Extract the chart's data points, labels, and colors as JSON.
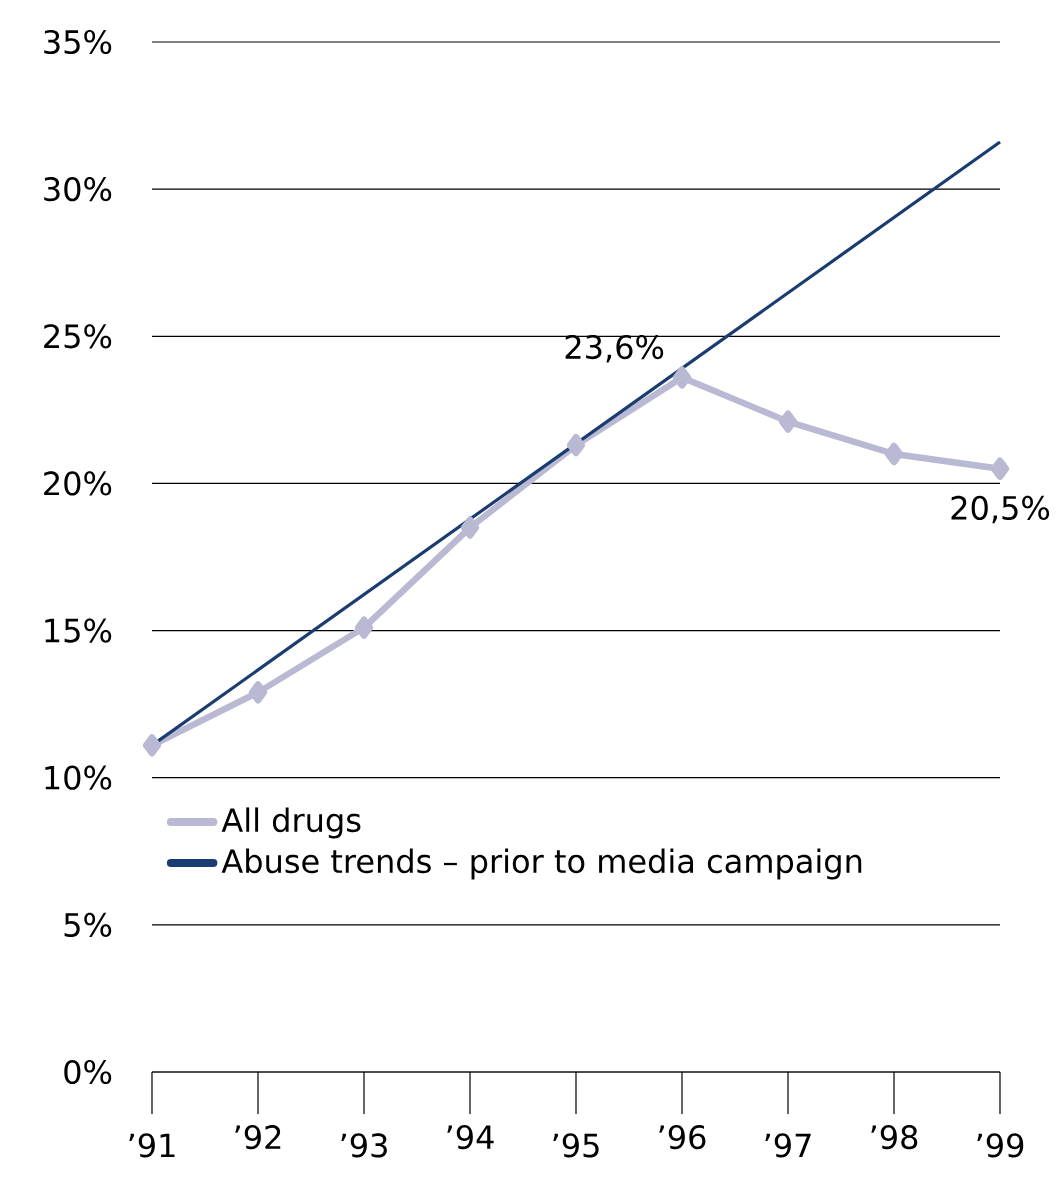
{
  "chart_data": {
    "type": "line",
    "x": [
      1991,
      1992,
      1993,
      1994,
      1995,
      1996,
      1997,
      1998,
      1999
    ],
    "xlim": [
      1991,
      1999
    ],
    "xticks": [
      {
        "value": 1991,
        "label": "’91"
      },
      {
        "value": 1992,
        "label": "’92"
      },
      {
        "value": 1993,
        "label": "’93"
      },
      {
        "value": 1994,
        "label": "’94"
      },
      {
        "value": 1995,
        "label": "’95"
      },
      {
        "value": 1996,
        "label": "’96"
      },
      {
        "value": 1997,
        "label": "’97"
      },
      {
        "value": 1998,
        "label": "’98"
      },
      {
        "value": 1999,
        "label": "’99"
      }
    ],
    "ylim": [
      0,
      35
    ],
    "yticks": [
      {
        "value": 0,
        "label": "0%"
      },
      {
        "value": 5,
        "label": "5%"
      },
      {
        "value": 10,
        "label": "10%"
      },
      {
        "value": 15,
        "label": "15%"
      },
      {
        "value": 20,
        "label": "20%"
      },
      {
        "value": 25,
        "label": "25%"
      },
      {
        "value": 30,
        "label": "30%"
      },
      {
        "value": 35,
        "label": "35%"
      }
    ],
    "grid": "y",
    "legend": "left",
    "series": [
      {
        "name": "All drugs",
        "color": "#b9b9d3",
        "marker": "diamond",
        "values": [
          11.1,
          12.9,
          15.1,
          18.5,
          21.3,
          23.6,
          22.1,
          21.0,
          20.5
        ],
        "value_labels": [
          null,
          null,
          null,
          null,
          null,
          "23,6%",
          null,
          null,
          "20,5%"
        ]
      },
      {
        "name": "Abuse trends – prior to media campaign",
        "type": "line",
        "color": "#1b3c70",
        "marker": "none",
        "x": [
          1991,
          1999
        ],
        "values": [
          11.1,
          31.6
        ]
      }
    ]
  }
}
